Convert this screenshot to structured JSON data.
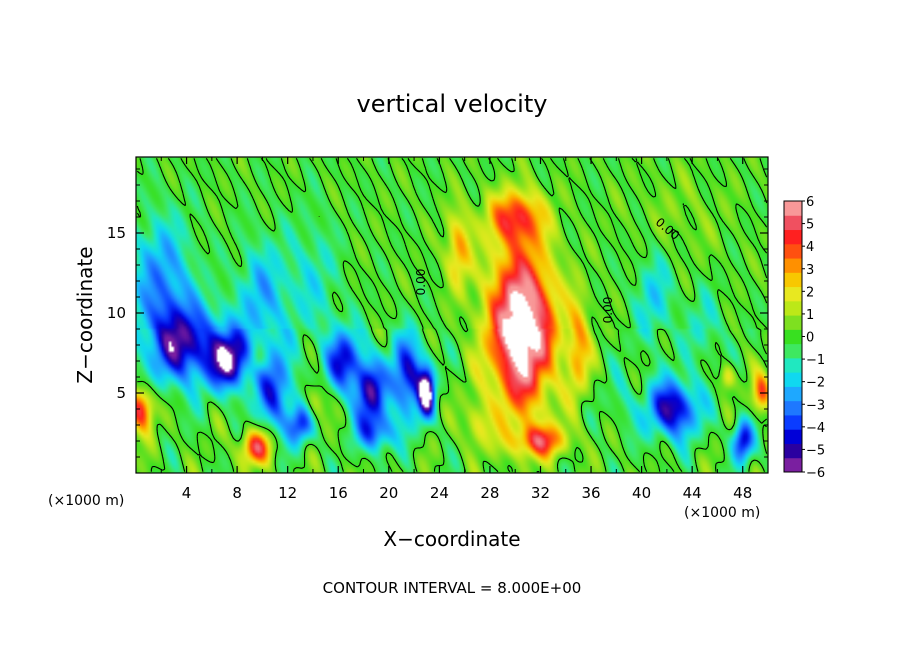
{
  "chart_data": {
    "type": "heatmap",
    "title": "vertical velocity",
    "xlabel": "X−coordinate",
    "ylabel": "Z−coordinate",
    "x_unit_label": "(×1000 m)",
    "y_unit_label": "(×1000 m)",
    "x_ticks": [
      4,
      8,
      12,
      16,
      20,
      24,
      28,
      32,
      36,
      40,
      44,
      48
    ],
    "y_ticks": [
      5,
      10,
      15
    ],
    "xlim": [
      0,
      50
    ],
    "ylim": [
      0,
      19.75
    ],
    "colorbar": {
      "ticks": [
        "6",
        "5",
        "4",
        "3",
        "2",
        "1",
        "0",
        "−1",
        "−2",
        "−3",
        "−4",
        "−5",
        "−6"
      ],
      "range": [
        -6,
        6
      ],
      "colors": [
        "#7a1fa0",
        "#2a00a0",
        "#0000d8",
        "#0a3cff",
        "#1e78ff",
        "#1ea8ff",
        "#10d8f0",
        "#20e8c0",
        "#3ee860",
        "#38e020",
        "#7ee020",
        "#bce818",
        "#e8e820",
        "#f8c800",
        "#ff9000",
        "#ff5010",
        "#ff2020",
        "#f05060",
        "#f89898"
      ]
    },
    "contour_label": "0.00",
    "footnote": "CONTOUR INTERVAL = 8.000E+00",
    "features": [
      {
        "x": 30.5,
        "z": 9.0,
        "value": 8.0,
        "sx": 2.6,
        "sz": 5.0
      },
      {
        "x": 30.0,
        "z": 16.0,
        "value": 4.0,
        "sx": 2.2,
        "sz": 1.6
      },
      {
        "x": 25.5,
        "z": 14.0,
        "value": 3.0,
        "sx": 1.0,
        "sz": 2.4
      },
      {
        "x": 35.0,
        "z": 8.0,
        "value": 3.0,
        "sx": 0.9,
        "sz": 3.0
      },
      {
        "x": 32.0,
        "z": 2.0,
        "value": 4.0,
        "sx": 2.2,
        "sz": 1.0
      },
      {
        "x": 9.5,
        "z": 1.6,
        "value": 5.0,
        "sx": 1.2,
        "sz": 1.1
      },
      {
        "x": 0.4,
        "z": 4.0,
        "value": 5.0,
        "sx": 1.0,
        "sz": 1.4
      },
      {
        "x": 49.5,
        "z": 5.0,
        "value": 4.0,
        "sx": 0.7,
        "sz": 1.2
      },
      {
        "x": 46.8,
        "z": 6.0,
        "value": 2.5,
        "sx": 0.6,
        "sz": 0.8
      },
      {
        "x": 14.2,
        "z": 4.5,
        "value": 2.0,
        "sx": 0.8,
        "sz": 1.2
      },
      {
        "x": 9.5,
        "z": 7.0,
        "value": 1.5,
        "sx": 0.7,
        "sz": 0.8
      },
      {
        "x": 4.0,
        "z": 8.0,
        "value": -5.0,
        "sx": 3.0,
        "sz": 2.5
      },
      {
        "x": 2.0,
        "z": 12.0,
        "value": -3.0,
        "sx": 2.5,
        "sz": 4.0
      },
      {
        "x": 7.5,
        "z": 7.0,
        "value": -5.5,
        "sx": 1.5,
        "sz": 1.8
      },
      {
        "x": 11.0,
        "z": 5.0,
        "value": -4.0,
        "sx": 1.5,
        "sz": 2.5
      },
      {
        "x": 13.0,
        "z": 3.0,
        "value": -4.0,
        "sx": 1.0,
        "sz": 1.2
      },
      {
        "x": 16.5,
        "z": 7.0,
        "value": -4.5,
        "sx": 1.5,
        "sz": 2.0
      },
      {
        "x": 18.5,
        "z": 5.0,
        "value": -5.0,
        "sx": 1.2,
        "sz": 2.0
      },
      {
        "x": 21.5,
        "z": 6.0,
        "value": -5.0,
        "sx": 1.4,
        "sz": 2.5
      },
      {
        "x": 23.0,
        "z": 5.0,
        "value": -6.5,
        "sx": 0.6,
        "sz": 1.5
      },
      {
        "x": 19.0,
        "z": 2.5,
        "value": -3.5,
        "sx": 1.5,
        "sz": 1.2
      },
      {
        "x": 10.0,
        "z": 11.0,
        "value": -2.5,
        "sx": 2.0,
        "sz": 3.5
      },
      {
        "x": 14.0,
        "z": 12.0,
        "value": -1.5,
        "sx": 2.0,
        "sz": 4.0
      },
      {
        "x": 42.5,
        "z": 4.0,
        "value": -5.5,
        "sx": 2.0,
        "sz": 1.8
      },
      {
        "x": 48.0,
        "z": 2.0,
        "value": -5.0,
        "sx": 0.8,
        "sz": 1.3
      },
      {
        "x": 41.0,
        "z": 11.0,
        "value": -2.0,
        "sx": 1.5,
        "sz": 3.0
      },
      {
        "x": 45.0,
        "z": 9.0,
        "value": -1.5,
        "sx": 1.3,
        "sz": 2.5
      },
      {
        "x": 38.5,
        "z": 4.5,
        "value": -1.0,
        "sx": 1.2,
        "sz": 2.0
      },
      {
        "x": 43.0,
        "z": 16.0,
        "value": 0.6,
        "sx": 4.0,
        "sz": 3.0
      },
      {
        "x": 27.0,
        "z": 3.0,
        "value": 2.0,
        "sx": 1.0,
        "sz": 1.5
      }
    ]
  }
}
